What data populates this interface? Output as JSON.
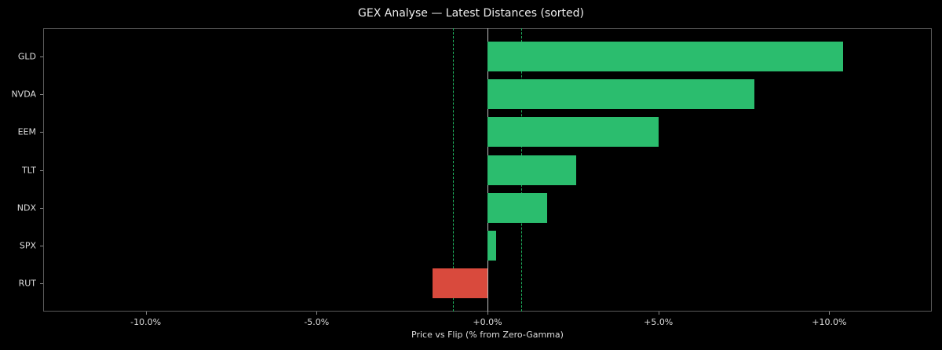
{
  "chart_data": {
    "type": "bar",
    "orientation": "horizontal",
    "title": "GEX Analyse — Latest Distances (sorted)",
    "xlabel": "Price vs Flip (% from Zero-Gamma)",
    "ylabel": "",
    "categories": [
      "GLD",
      "NVDA",
      "EEM",
      "TLT",
      "NDX",
      "SPX",
      "RUT"
    ],
    "values": [
      10.4,
      7.8,
      5.0,
      2.6,
      1.75,
      0.25,
      -1.6
    ],
    "units": "%",
    "xlim": [
      -13,
      13
    ],
    "xticks": [
      -10,
      -5,
      0,
      5,
      10
    ],
    "xtick_labels": [
      "-10.0%",
      "-5.0%",
      "+0.0%",
      "+5.0%",
      "+10.0%"
    ],
    "reference_lines": [
      {
        "x": 0,
        "style": "solid",
        "color": "#bfbfbf"
      },
      {
        "x": -1,
        "style": "dashed",
        "color": "#1fb35e"
      },
      {
        "x": 1,
        "style": "dashed",
        "color": "#1fb35e"
      }
    ],
    "colors": {
      "positive": "#2bbd6e",
      "negative": "#d94a3d",
      "background": "#000000"
    },
    "grid": false,
    "legend": null
  }
}
